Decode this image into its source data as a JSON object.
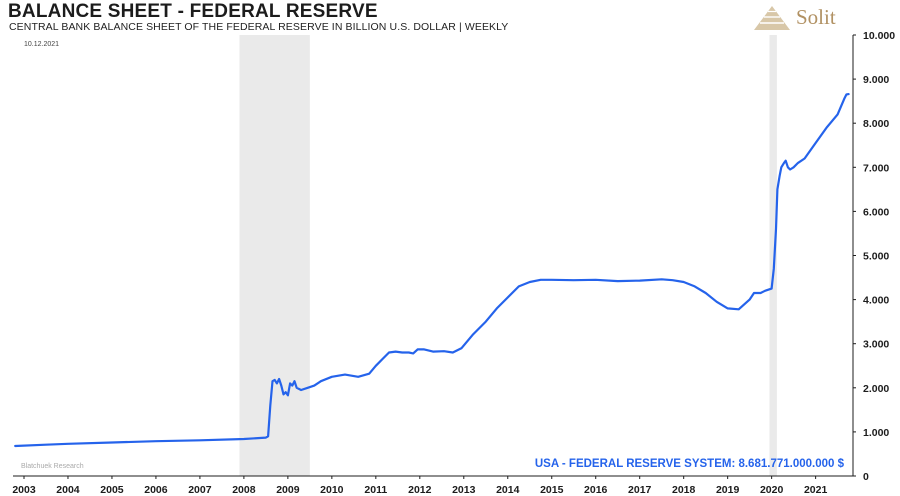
{
  "header": {
    "title": "BALANCE SHEET - FEDERAL RESERVE",
    "subtitle": "CENTRAL BANK BALANCE SHEET OF THE FEDERAL RESERVE IN BILLION U.S. DOLLAR | WEEKLY",
    "logo_text": "Solit"
  },
  "chart_data": {
    "type": "line",
    "title": "BALANCE SHEET - FEDERAL RESERVE",
    "subtitle": "CENTRAL BANK BALANCE SHEET OF THE FEDERAL RESERVE IN BILLION U.S. DOLLAR | WEEKLY",
    "date_label": "10.12.2021",
    "source_label": "Blatchuek Research",
    "annotation": "USA - FEDERAL RESERVE SYSTEM: 8.681.771.000.000 $",
    "line_color": "#2563eb",
    "y_axis_position": "right",
    "xlim": [
      2002.75,
      2021.85
    ],
    "ylim": [
      0,
      10000
    ],
    "x_ticks": [
      2003,
      2004,
      2005,
      2006,
      2007,
      2008,
      2009,
      2010,
      2011,
      2012,
      2013,
      2014,
      2015,
      2016,
      2017,
      2018,
      2019,
      2020,
      2021
    ],
    "x_tick_labels": [
      "2003",
      "2004",
      "2005",
      "2006",
      "2007",
      "2008",
      "2009",
      "2010",
      "2011",
      "2012",
      "2013",
      "2014",
      "2015",
      "2016",
      "2017",
      "2018",
      "2019",
      "2020",
      "2021"
    ],
    "y_ticks": [
      0,
      1000,
      2000,
      3000,
      4000,
      5000,
      6000,
      7000,
      8000,
      9000,
      10000
    ],
    "y_tick_labels": [
      "0",
      "1.000",
      "2.000",
      "3.000",
      "4.000",
      "5.000",
      "6.000",
      "7.000",
      "8.000",
      "9.000",
      "10.000"
    ],
    "recessions": [
      [
        2007.9,
        2009.5
      ],
      [
        2019.95,
        2020.12
      ]
    ],
    "series": [
      {
        "name": "USA - FEDERAL RESERVE SYSTEM",
        "x": [
          2002.8,
          2003.5,
          2004.0,
          2005.0,
          2006.0,
          2007.0,
          2008.0,
          2008.5,
          2008.55,
          2008.6,
          2008.65,
          2008.7,
          2008.75,
          2008.8,
          2008.85,
          2008.9,
          2008.95,
          2009.0,
          2009.05,
          2009.1,
          2009.15,
          2009.2,
          2009.3,
          2009.45,
          2009.6,
          2009.75,
          2010.0,
          2010.3,
          2010.6,
          2010.85,
          2011.0,
          2011.15,
          2011.3,
          2011.45,
          2011.6,
          2011.75,
          2011.85,
          2011.95,
          2012.1,
          2012.3,
          2012.55,
          2012.75,
          2012.95,
          2013.2,
          2013.5,
          2013.75,
          2014.0,
          2014.25,
          2014.5,
          2014.75,
          2015.0,
          2015.5,
          2016.0,
          2016.5,
          2017.0,
          2017.5,
          2017.75,
          2018.0,
          2018.25,
          2018.5,
          2018.75,
          2019.0,
          2019.25,
          2019.5,
          2019.6,
          2019.75,
          2019.85,
          2020.0,
          2020.05,
          2020.1,
          2020.13,
          2020.18,
          2020.22,
          2020.28,
          2020.32,
          2020.37,
          2020.42,
          2020.5,
          2020.6,
          2020.75,
          2021.0,
          2021.25,
          2021.5,
          2021.65,
          2021.7,
          2021.75
        ],
        "y": [
          680,
          710,
          730,
          760,
          790,
          810,
          840,
          870,
          900,
          1600,
          2150,
          2180,
          2100,
          2200,
          2050,
          1850,
          1900,
          1830,
          2100,
          2050,
          2150,
          2000,
          1950,
          2000,
          2050,
          2150,
          2250,
          2300,
          2250,
          2320,
          2500,
          2650,
          2800,
          2820,
          2800,
          2800,
          2780,
          2870,
          2870,
          2820,
          2830,
          2800,
          2900,
          3200,
          3500,
          3800,
          4050,
          4300,
          4400,
          4450,
          4450,
          4440,
          4450,
          4420,
          4430,
          4460,
          4440,
          4400,
          4300,
          4150,
          3950,
          3800,
          3780,
          4000,
          4150,
          4150,
          4200,
          4250,
          4700,
          5600,
          6500,
          6800,
          7000,
          7100,
          7150,
          7000,
          6950,
          7000,
          7100,
          7200,
          7550,
          7900,
          8200,
          8550,
          8650,
          8660
        ]
      }
    ]
  }
}
